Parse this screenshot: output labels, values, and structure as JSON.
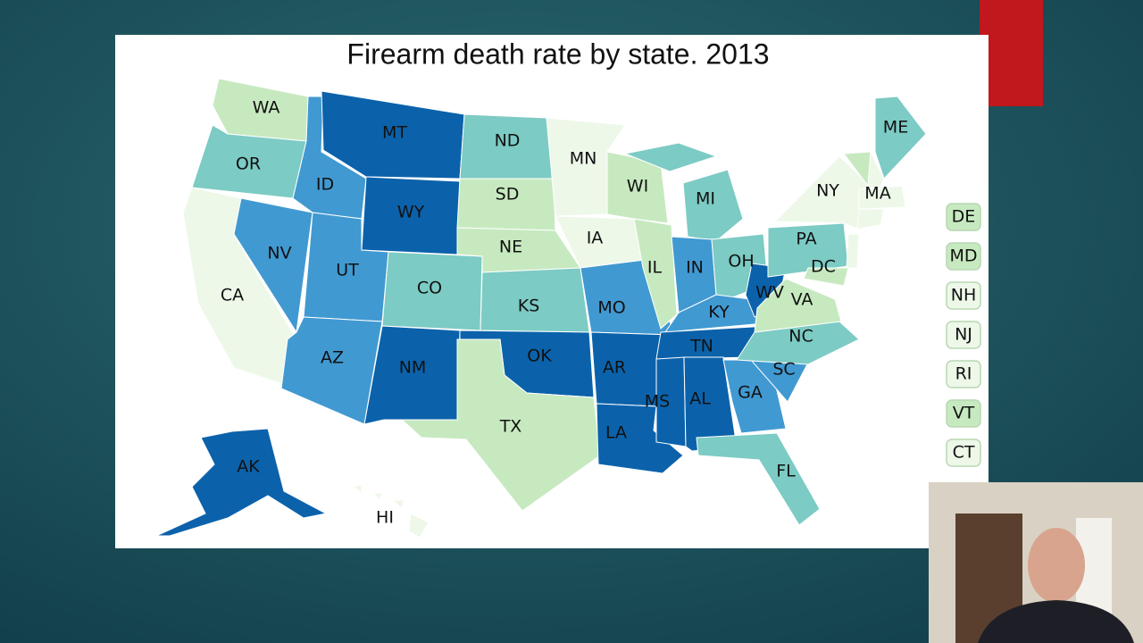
{
  "slide": {
    "title": "Firearm death rate by state. 2013",
    "states": [
      {
        "label": "WA",
        "color": "#c7e9c0"
      },
      {
        "label": "OR",
        "color": "#7ccbc4"
      },
      {
        "label": "CA",
        "color": "#edf8e9"
      },
      {
        "label": "NV",
        "color": "#4199d1"
      },
      {
        "label": "ID",
        "color": "#4199d1"
      },
      {
        "label": "MT",
        "color": "#0b62ab"
      },
      {
        "label": "WY",
        "color": "#0b62ab"
      },
      {
        "label": "UT",
        "color": "#4199d1"
      },
      {
        "label": "AZ",
        "color": "#4199d1"
      },
      {
        "label": "CO",
        "color": "#7ccbc4"
      },
      {
        "label": "NM",
        "color": "#0b62ab"
      },
      {
        "label": "ND",
        "color": "#7ccbc4"
      },
      {
        "label": "SD",
        "color": "#c7e9c0"
      },
      {
        "label": "NE",
        "color": "#c7e9c0"
      },
      {
        "label": "KS",
        "color": "#7ccbc4"
      },
      {
        "label": "OK",
        "color": "#0b62ab"
      },
      {
        "label": "TX",
        "color": "#c7e9c0"
      },
      {
        "label": "MN",
        "color": "#edf8e9"
      },
      {
        "label": "IA",
        "color": "#edf8e9"
      },
      {
        "label": "MO",
        "color": "#4199d1"
      },
      {
        "label": "AR",
        "color": "#0b62ab"
      },
      {
        "label": "LA",
        "color": "#0b62ab"
      },
      {
        "label": "WI",
        "color": "#c7e9c0"
      },
      {
        "label": "IL",
        "color": "#c7e9c0"
      },
      {
        "label": "MI",
        "color": "#7ccbc4"
      },
      {
        "label": "IN",
        "color": "#4199d1"
      },
      {
        "label": "OH",
        "color": "#7ccbc4"
      },
      {
        "label": "KY",
        "color": "#4199d1"
      },
      {
        "label": "WV",
        "color": "#0b62ab"
      },
      {
        "label": "TN",
        "color": "#0b62ab"
      },
      {
        "label": "MS",
        "color": "#0b62ab"
      },
      {
        "label": "AL",
        "color": "#0b62ab"
      },
      {
        "label": "GA",
        "color": "#4199d1"
      },
      {
        "label": "SC",
        "color": "#4199d1"
      },
      {
        "label": "NC",
        "color": "#7ccbc4"
      },
      {
        "label": "VA",
        "color": "#c7e9c0"
      },
      {
        "label": "FL",
        "color": "#7ccbc4"
      },
      {
        "label": "PA",
        "color": "#7ccbc4"
      },
      {
        "label": "NY",
        "color": "#edf8e9"
      },
      {
        "label": "ME",
        "color": "#7ccbc4"
      },
      {
        "label": "MA",
        "color": "#edf8e9"
      },
      {
        "label": "DC",
        "color": "#c7e9c0"
      },
      {
        "label": "AK",
        "color": "#0b62ab"
      },
      {
        "label": "HI",
        "color": "#edf8e9"
      }
    ],
    "callouts": [
      {
        "label": "DE",
        "color": "#c7e9c0"
      },
      {
        "label": "MD",
        "color": "#c7e9c0"
      },
      {
        "label": "NH",
        "color": "#edf8e9"
      },
      {
        "label": "NJ",
        "color": "#edf8e9"
      },
      {
        "label": "RI",
        "color": "#edf8e9"
      },
      {
        "label": "VT",
        "color": "#c7e9c0"
      },
      {
        "label": "CT",
        "color": "#edf8e9"
      }
    ]
  }
}
